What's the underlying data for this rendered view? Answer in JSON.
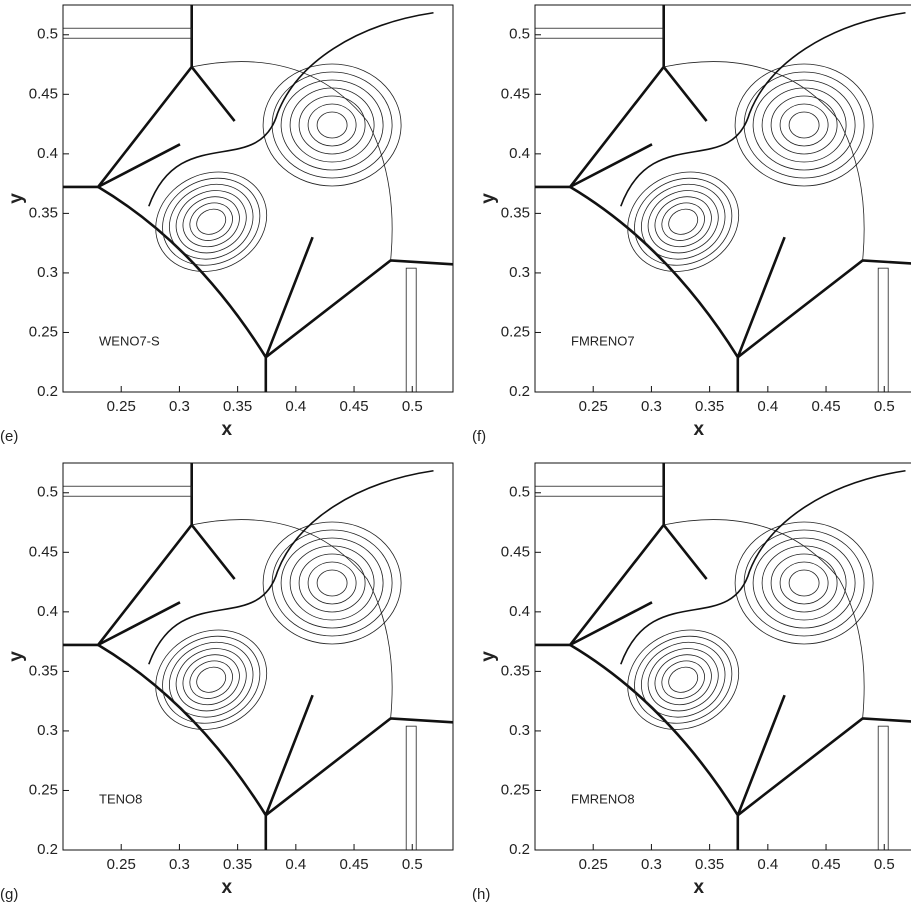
{
  "chart_data": [
    {
      "type": "contour",
      "panel_label": "(e)",
      "annotation": "WENO7-S",
      "x_label": "x",
      "y_label": "y",
      "xlim": [
        0.2,
        0.535
      ],
      "ylim": [
        0.2,
        0.525
      ],
      "xticks": [
        0.25,
        0.3,
        0.35,
        0.4,
        0.45,
        0.5
      ],
      "yticks": [
        0.2,
        0.25,
        0.3,
        0.35,
        0.4,
        0.45,
        0.5
      ]
    },
    {
      "type": "contour",
      "panel_label": "(f)",
      "annotation": "FMRENO7",
      "x_label": "x",
      "y_label": "y",
      "xlim": [
        0.2,
        0.535
      ],
      "ylim": [
        0.2,
        0.525
      ],
      "xticks": [
        0.25,
        0.3,
        0.35,
        0.4,
        0.45,
        0.5
      ],
      "yticks": [
        0.2,
        0.25,
        0.3,
        0.35,
        0.4,
        0.45,
        0.5
      ]
    },
    {
      "type": "contour",
      "panel_label": "(g)",
      "annotation": "TENO8",
      "x_label": "x",
      "y_label": "y",
      "xlim": [
        0.2,
        0.535
      ],
      "ylim": [
        0.2,
        0.525
      ],
      "xticks": [
        0.25,
        0.3,
        0.35,
        0.4,
        0.45,
        0.5
      ],
      "yticks": [
        0.2,
        0.25,
        0.3,
        0.35,
        0.4,
        0.45,
        0.5
      ]
    },
    {
      "type": "contour",
      "panel_label": "(h)",
      "annotation": "FMRENO8",
      "x_label": "x",
      "y_label": "y",
      "xlim": [
        0.2,
        0.535
      ],
      "ylim": [
        0.2,
        0.525
      ],
      "xticks": [
        0.25,
        0.3,
        0.35,
        0.4,
        0.45,
        0.5
      ],
      "yticks": [
        0.2,
        0.25,
        0.3,
        0.35,
        0.4,
        0.45,
        0.5
      ]
    }
  ]
}
